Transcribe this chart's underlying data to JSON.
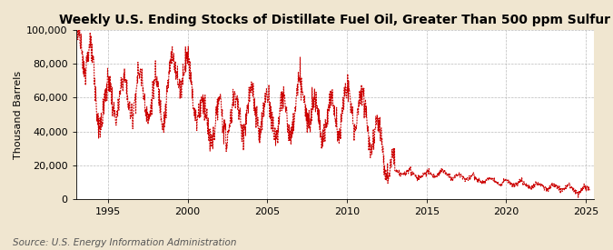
{
  "title": "Weekly U.S. Ending Stocks of Distillate Fuel Oil, Greater Than 500 ppm Sulfur",
  "ylabel": "Thousand Barrels",
  "source": "Source: U.S. Energy Information Administration",
  "line_color": "#CC0000",
  "figure_bg_color": "#F0E6D0",
  "plot_bg_color": "#FFFFFF",
  "grid_color": "#AAAAAA",
  "ylim": [
    0,
    100000
  ],
  "yticks": [
    0,
    20000,
    40000,
    60000,
    80000,
    100000
  ],
  "ytick_labels": [
    "0",
    "20,000",
    "40,000",
    "60,000",
    "80,000",
    "100,000"
  ],
  "xticks": [
    1995,
    2000,
    2005,
    2010,
    2015,
    2020,
    2025
  ],
  "xlim": [
    1993.0,
    2025.5
  ],
  "title_fontsize": 10,
  "ylabel_fontsize": 8,
  "tick_fontsize": 8,
  "source_fontsize": 7.5
}
